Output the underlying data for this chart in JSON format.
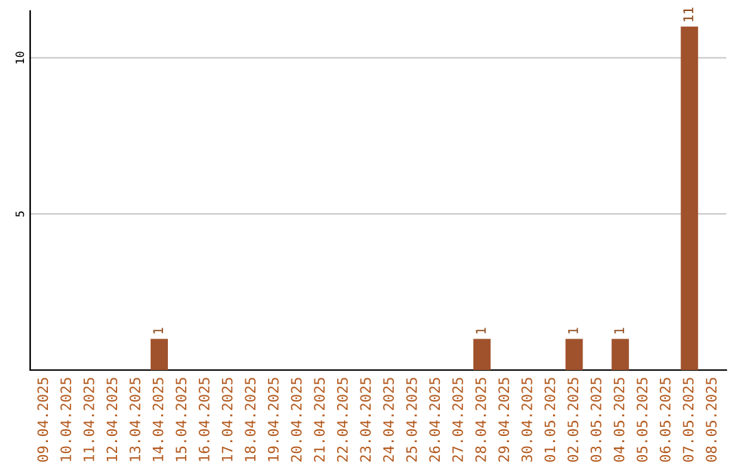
{
  "chart_data": {
    "type": "bar",
    "categories": [
      "09.04.2025",
      "10.04.2025",
      "11.04.2025",
      "12.04.2025",
      "13.04.2025",
      "14.04.2025",
      "15.04.2025",
      "16.04.2025",
      "17.04.2025",
      "18.04.2025",
      "19.04.2025",
      "20.04.2025",
      "21.04.2025",
      "22.04.2025",
      "23.04.2025",
      "24.04.2025",
      "25.04.2025",
      "26.04.2025",
      "27.04.2025",
      "28.04.2025",
      "29.04.2025",
      "30.04.2025",
      "01.05.2025",
      "02.05.2025",
      "03.05.2025",
      "04.05.2025",
      "05.05.2025",
      "06.05.2025",
      "07.05.2025",
      "08.05.2025"
    ],
    "values": [
      0,
      0,
      0,
      0,
      0,
      1,
      0,
      0,
      0,
      0,
      0,
      0,
      0,
      0,
      0,
      0,
      0,
      0,
      0,
      1,
      0,
      0,
      0,
      1,
      0,
      1,
      0,
      0,
      11,
      0
    ],
    "value_labels": [
      null,
      null,
      null,
      null,
      null,
      "1",
      null,
      null,
      null,
      null,
      null,
      null,
      null,
      null,
      null,
      null,
      null,
      null,
      null,
      "1",
      null,
      null,
      null,
      "1",
      null,
      "1",
      null,
      null,
      "11",
      null
    ],
    "color": "#a0522d",
    "ylim": [
      0,
      11.5
    ],
    "yticks": [
      5,
      10
    ],
    "grid": "y"
  }
}
